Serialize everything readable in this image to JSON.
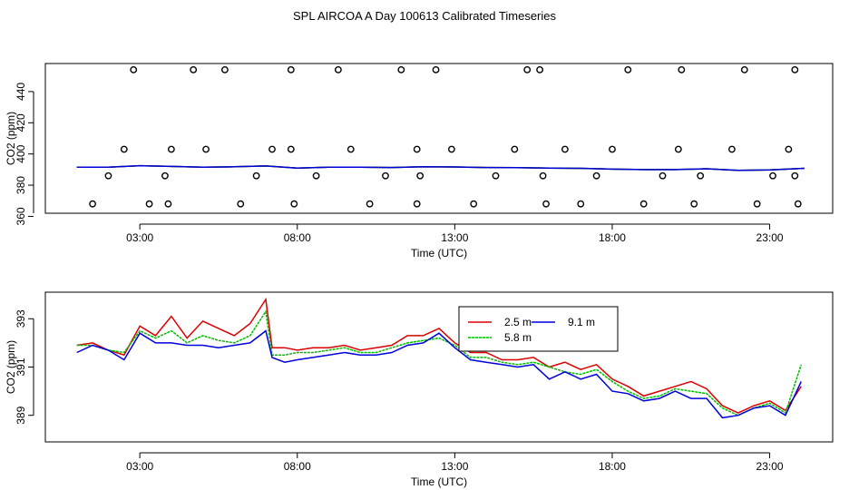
{
  "title": "SPL AIRCOA A  Day 100613  Calibrated Timeseries",
  "colors": {
    "s1": "#dd0000",
    "s2": "#00bb00",
    "s3": "#0000dd",
    "axis": "#000000"
  },
  "chart_data": [
    {
      "type": "line",
      "ylabel": "CO2 (ppm)",
      "xlabel": "Time (UTC)",
      "xlim": [
        0.0,
        25.0
      ],
      "ylim": [
        362,
        458
      ],
      "x_ticks": [
        "03:00",
        "08:00",
        "13:00",
        "18:00",
        "23:00"
      ],
      "x_tick_values": [
        3,
        8,
        13,
        18,
        23
      ],
      "y_ticks": [
        "360",
        "380",
        "400",
        "420",
        "440"
      ],
      "y_tick_values": [
        360,
        380,
        400,
        420,
        440
      ],
      "series": [
        {
          "x": [
            1.0,
            2.0,
            3.0,
            4.0,
            5.0,
            6.0,
            7.0,
            8.0,
            9.0,
            10.0,
            11.0,
            12.0,
            13.0,
            14.0,
            15.0,
            16.0,
            17.0,
            18.0,
            19.0,
            20.0,
            21.0,
            22.0,
            23.0,
            24.1
          ],
          "values": [
            391.5,
            391.5,
            392.5,
            392.0,
            391.5,
            391.8,
            392.3,
            391.0,
            391.5,
            391.5,
            391.3,
            391.8,
            391.7,
            391.3,
            391.2,
            391.0,
            390.8,
            390.3,
            390.0,
            390.0,
            390.5,
            389.5,
            389.8,
            390.8
          ]
        },
        {
          "type": "scatter",
          "x": [
            1.5,
            2.0,
            2.5,
            2.8,
            3.3,
            3.8,
            3.9,
            4.0,
            4.7,
            5.1,
            5.7,
            6.2,
            6.7,
            7.2,
            7.8,
            7.8,
            7.9,
            8.6,
            9.3,
            9.7,
            10.3,
            10.8,
            11.3,
            11.8,
            11.8,
            11.9,
            12.4,
            12.9,
            13.6,
            14.3,
            14.9,
            15.3,
            15.7,
            15.8,
            15.9,
            16.5,
            17.0,
            17.5,
            18.0,
            18.5,
            19.0,
            19.6,
            20.1,
            20.2,
            20.6,
            20.8,
            21.8,
            22.2,
            22.6,
            23.1,
            23.6,
            23.8,
            23.8,
            23.9
          ],
          "values": [
            368,
            386,
            403,
            454,
            368,
            386,
            368,
            403,
            454,
            403,
            454,
            368,
            386,
            403,
            454,
            403,
            368,
            386,
            454,
            403,
            368,
            386,
            454,
            403,
            368,
            386,
            454,
            403,
            368,
            386,
            403,
            454,
            454,
            386,
            368,
            403,
            368,
            386,
            403,
            454,
            368,
            386,
            403,
            454,
            368,
            386,
            403,
            454,
            368,
            386,
            403,
            454,
            386,
            368
          ]
        }
      ]
    },
    {
      "type": "line",
      "ylabel": "CO2 (ppm)",
      "xlabel": "Time (UTC)",
      "xlim": [
        0.0,
        25.0
      ],
      "ylim": [
        387.9,
        394.1
      ],
      "x_ticks": [
        "03:00",
        "08:00",
        "13:00",
        "18:00",
        "23:00"
      ],
      "x_tick_values": [
        3,
        8,
        13,
        18,
        23
      ],
      "y_ticks": [
        "389",
        "391",
        "393"
      ],
      "y_tick_values": [
        389,
        391,
        393
      ],
      "legend": {
        "position": "top-center",
        "labels": [
          "2.5 m",
          "5.8 m",
          "9.1 m"
        ]
      },
      "x": [
        1.0,
        1.5,
        2.0,
        2.5,
        3.0,
        3.5,
        4.0,
        4.5,
        5.0,
        5.5,
        6.0,
        6.5,
        7.0,
        7.2,
        7.6,
        8.0,
        8.5,
        9.0,
        9.5,
        10.0,
        10.5,
        11.0,
        11.5,
        12.0,
        12.5,
        13.0,
        13.5,
        14.0,
        14.5,
        15.0,
        15.5,
        16.0,
        16.5,
        17.0,
        17.5,
        18.0,
        18.5,
        19.0,
        19.5,
        20.0,
        20.5,
        21.0,
        21.5,
        22.0,
        22.5,
        23.0,
        23.5,
        24.0
      ],
      "series": [
        {
          "name": "2.5 m",
          "values": [
            391.9,
            392.0,
            391.7,
            391.5,
            392.7,
            392.3,
            393.1,
            392.2,
            392.9,
            392.6,
            392.3,
            392.8,
            393.8,
            391.8,
            391.8,
            391.7,
            391.8,
            391.8,
            391.9,
            391.7,
            391.8,
            391.9,
            392.3,
            392.3,
            392.6,
            392.0,
            391.6,
            391.6,
            391.3,
            391.3,
            391.4,
            391.0,
            391.2,
            390.9,
            391.1,
            390.5,
            390.2,
            389.8,
            390.0,
            390.2,
            390.4,
            390.1,
            389.4,
            389.1,
            389.4,
            389.6,
            389.2,
            390.2
          ]
        },
        {
          "name": "5.8 m",
          "values": [
            391.9,
            391.9,
            391.7,
            391.6,
            392.5,
            392.2,
            392.5,
            392.0,
            392.3,
            392.1,
            392.0,
            392.3,
            393.3,
            391.5,
            391.5,
            391.6,
            391.6,
            391.7,
            391.8,
            391.6,
            391.6,
            391.8,
            392.0,
            392.1,
            392.2,
            391.9,
            391.4,
            391.4,
            391.2,
            391.1,
            391.2,
            391.0,
            390.8,
            390.7,
            390.9,
            390.4,
            390.0,
            389.7,
            389.8,
            390.1,
            390.0,
            389.9,
            389.3,
            389.0,
            389.3,
            389.5,
            389.1,
            391.1
          ]
        },
        {
          "name": "9.1 m",
          "values": [
            391.6,
            391.9,
            391.7,
            391.3,
            392.4,
            392.0,
            392.0,
            391.9,
            391.9,
            391.8,
            391.9,
            392.0,
            392.5,
            391.4,
            391.2,
            391.3,
            391.4,
            391.5,
            391.6,
            391.5,
            391.5,
            391.6,
            391.9,
            392.0,
            392.4,
            391.8,
            391.3,
            391.2,
            391.1,
            391.0,
            391.1,
            390.5,
            390.8,
            390.5,
            390.7,
            390.0,
            389.9,
            389.6,
            389.7,
            390.0,
            389.7,
            389.7,
            388.9,
            389.0,
            389.3,
            389.4,
            389.0,
            390.4
          ]
        }
      ]
    }
  ]
}
